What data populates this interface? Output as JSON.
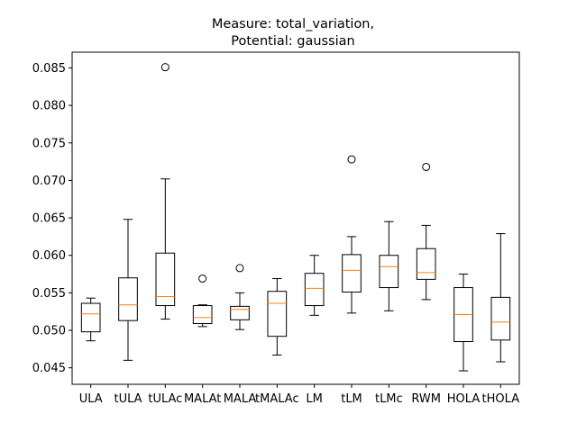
{
  "chart_data": {
    "type": "box",
    "title_line1": "Measure: total_variation,",
    "title_line2": "Potential: gaussian",
    "xlabel": "",
    "ylabel": "",
    "ylim": [
      0.0428,
      0.0871
    ],
    "yticks": [
      0.045,
      0.05,
      0.055,
      0.06,
      0.065,
      0.07,
      0.075,
      0.08,
      0.085
    ],
    "ytick_labels": [
      "0.045",
      "0.050",
      "0.055",
      "0.060",
      "0.065",
      "0.070",
      "0.075",
      "0.080",
      "0.085"
    ],
    "grid": false,
    "median_color": "#ff7f0e",
    "categories": [
      "ULA",
      "tULA",
      "tULAc",
      "MALAt",
      "MALA",
      "tMALAc",
      "LM",
      "tLM",
      "tLMc",
      "RWM",
      "HOLA",
      "tHOLA"
    ],
    "boxes": [
      {
        "whisker_low": 0.0486,
        "q1": 0.0498,
        "median": 0.0522,
        "q3": 0.0536,
        "whisker_high": 0.0543,
        "outliers": []
      },
      {
        "whisker_low": 0.046,
        "q1": 0.0513,
        "median": 0.0534,
        "q3": 0.057,
        "whisker_high": 0.0648,
        "outliers": []
      },
      {
        "whisker_low": 0.0515,
        "q1": 0.0533,
        "median": 0.0545,
        "q3": 0.0603,
        "whisker_high": 0.0702,
        "outliers": [
          0.0851
        ]
      },
      {
        "whisker_low": 0.0505,
        "q1": 0.0509,
        "median": 0.0517,
        "q3": 0.0533,
        "whisker_high": 0.0534,
        "outliers": [
          0.0569
        ]
      },
      {
        "whisker_low": 0.0501,
        "q1": 0.0514,
        "median": 0.0528,
        "q3": 0.0532,
        "whisker_high": 0.055,
        "outliers": [
          0.0583
        ]
      },
      {
        "whisker_low": 0.0467,
        "q1": 0.0492,
        "median": 0.0536,
        "q3": 0.0552,
        "whisker_high": 0.0569,
        "outliers": []
      },
      {
        "whisker_low": 0.052,
        "q1": 0.0533,
        "median": 0.0556,
        "q3": 0.0576,
        "whisker_high": 0.06,
        "outliers": []
      },
      {
        "whisker_low": 0.0523,
        "q1": 0.0551,
        "median": 0.058,
        "q3": 0.0601,
        "whisker_high": 0.0625,
        "outliers": [
          0.0728
        ]
      },
      {
        "whisker_low": 0.0526,
        "q1": 0.0557,
        "median": 0.0585,
        "q3": 0.06,
        "whisker_high": 0.0645,
        "outliers": []
      },
      {
        "whisker_low": 0.0541,
        "q1": 0.0568,
        "median": 0.0577,
        "q3": 0.0609,
        "whisker_high": 0.064,
        "outliers": [
          0.0718
        ]
      },
      {
        "whisker_low": 0.0446,
        "q1": 0.0485,
        "median": 0.0521,
        "q3": 0.0557,
        "whisker_high": 0.0575,
        "outliers": []
      },
      {
        "whisker_low": 0.0458,
        "q1": 0.0487,
        "median": 0.0511,
        "q3": 0.0544,
        "whisker_high": 0.0629,
        "outliers": []
      }
    ]
  }
}
